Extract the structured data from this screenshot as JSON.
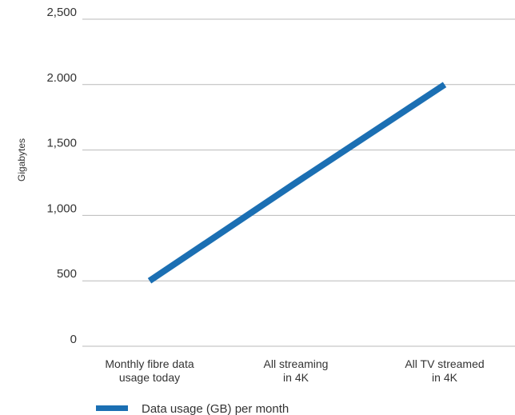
{
  "chart_data": {
    "type": "line",
    "ylabel": "Gigabytes",
    "xlabel": "",
    "categories": [
      [
        "Monthly fibre data",
        "usage today"
      ],
      [
        "All streaming",
        "in 4K"
      ],
      [
        "All TV streamed",
        "in 4K"
      ]
    ],
    "y_ticks": [
      {
        "value": 0,
        "label": "0"
      },
      {
        "value": 500,
        "label": "500"
      },
      {
        "value": 1000,
        "label": "1,000"
      },
      {
        "value": 1500,
        "label": "1,500"
      },
      {
        "value": 2000,
        "label": "2.000"
      },
      {
        "value": 2500,
        "label": "2,500"
      }
    ],
    "ylim": [
      0,
      2500
    ],
    "grid": true,
    "legend_position": "bottom-left",
    "series": [
      {
        "name": "Data usage (GB) per month",
        "color": "#1b6fb3",
        "values": [
          500,
          1250,
          2000
        ]
      }
    ]
  }
}
